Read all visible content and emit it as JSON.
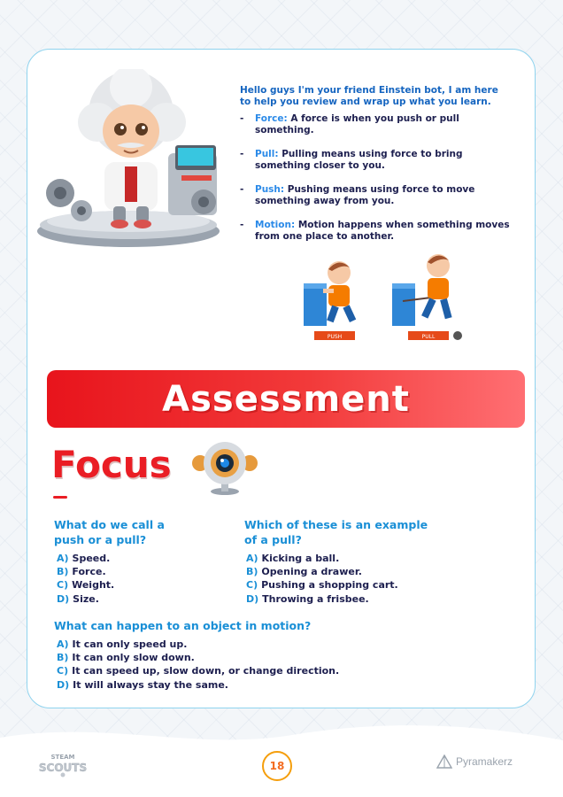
{
  "intro": {
    "text": "Hello guys I'm your friend Einstein bot, I am here to help you review and wrap up what you learn."
  },
  "bullets": [
    {
      "term": "Force:",
      "text": " A force is when you push or pull something."
    },
    {
      "term": "Pull:",
      "text": " Pulling means using force to bring something closer to you."
    },
    {
      "term": "Push:",
      "text": " Pushing means using force to move something away from you."
    },
    {
      "term": "Motion:",
      "text": " Motion happens when something moves from one place to another."
    }
  ],
  "illustration": {
    "push_label": "PUSH",
    "pull_label": "PULL"
  },
  "assessment": {
    "banner": "Assessment",
    "focus_title": "Focus"
  },
  "questions": [
    {
      "title": "What do we call a push or a pull?",
      "options": [
        {
          "letter": "A)",
          "text": "Speed."
        },
        {
          "letter": "B)",
          "text": "Force."
        },
        {
          "letter": "C)",
          "text": "Weight."
        },
        {
          "letter": "D)",
          "text": "Size."
        }
      ]
    },
    {
      "title": "Which of these is an example of a pull?",
      "options": [
        {
          "letter": "A)",
          "text": "Kicking a ball."
        },
        {
          "letter": "B)",
          "text": "Opening a drawer."
        },
        {
          "letter": "C)",
          "text": "Pushing a shopping cart."
        },
        {
          "letter": "D)",
          "text": "Throwing a frisbee."
        }
      ]
    },
    {
      "title": "What can happen to an object in motion?",
      "options": [
        {
          "letter": "A)",
          "text": "It can only speed up."
        },
        {
          "letter": "B)",
          "text": "It can only slow down."
        },
        {
          "letter": "C)",
          "text": "It can speed up, slow down, or change direction."
        },
        {
          "letter": "D)",
          "text": "It will always stay the same."
        }
      ]
    }
  ],
  "footer": {
    "logo_top": "STEAM",
    "logo_bottom": "SCOUTS",
    "page_number": "18",
    "brand": "Pyramakerz"
  },
  "colors": {
    "banner_red": "#e8141c",
    "focus_red": "#ea1d24",
    "question_blue": "#1a8fd6",
    "term_blue": "#2b8ae8",
    "text_navy": "#1d1f4f",
    "page_orange": "#f36c21"
  }
}
